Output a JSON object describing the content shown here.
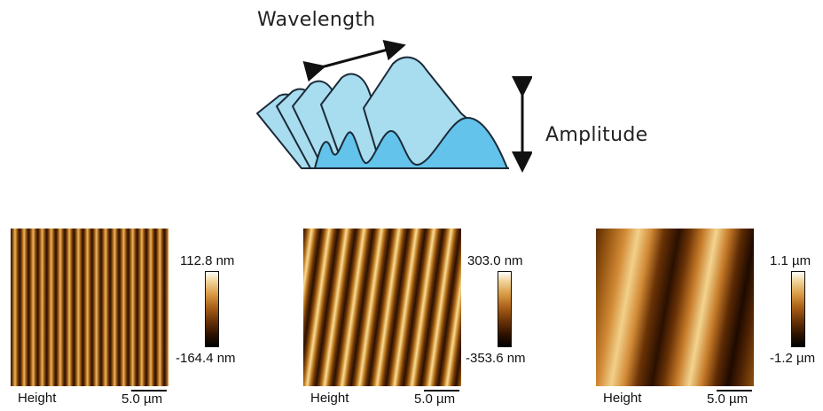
{
  "schematic": {
    "wavelength_label": "Wavelength",
    "amplitude_label": "Amplitude",
    "fill_light": "#a8dcef",
    "fill_dark": "#63c3ea",
    "stroke": "#1b2a38"
  },
  "panels": [
    {
      "channel": "Height",
      "scale_bar": "5.0 µm",
      "colorbar_max": "112.8 nm",
      "colorbar_min": "-164.4 nm"
    },
    {
      "channel": "Height",
      "scale_bar": "5.0 µm",
      "colorbar_max": "303.0 nm",
      "colorbar_min": "-353.6 nm"
    },
    {
      "channel": "Height",
      "scale_bar": "5.0 µm",
      "colorbar_max": "1.1 µm",
      "colorbar_min": "-1.2 µm"
    }
  ]
}
